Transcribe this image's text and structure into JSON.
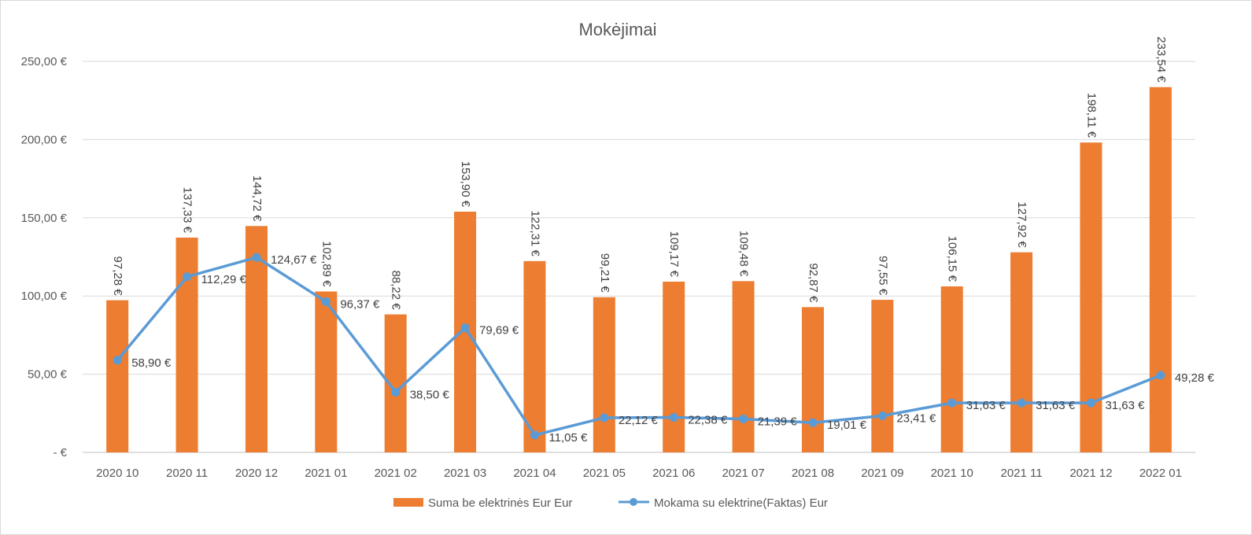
{
  "chart_data": {
    "type": "bar",
    "title": "Mokėjimai",
    "categories": [
      "2020 10",
      "2020 11",
      "2020 12",
      "2021 01",
      "2021 02",
      "2021 03",
      "2021 04",
      "2021 05",
      "2021 06",
      "2021 07",
      "2021 08",
      "2021 09",
      "2021 10",
      "2021 11",
      "2021 12",
      "2022 01"
    ],
    "ylim": [
      0,
      250
    ],
    "yticks": [
      {
        "value": 0,
        "label": "-   €"
      },
      {
        "value": 50,
        "label": "50,00 €"
      },
      {
        "value": 100,
        "label": "100,00 €"
      },
      {
        "value": 150,
        "label": "150,00 €"
      },
      {
        "value": 200,
        "label": "200,00 €"
      },
      {
        "value": 250,
        "label": "250,00 €"
      }
    ],
    "grid": true,
    "legend_position": "bottom",
    "series": [
      {
        "name": "Suma be elektrinės Eur Eur",
        "type": "bar",
        "color": "#ED7D31",
        "values": [
          97.28,
          137.33,
          144.72,
          102.89,
          88.22,
          153.9,
          122.31,
          99.21,
          109.17,
          109.48,
          92.87,
          97.55,
          106.15,
          127.92,
          198.11,
          233.54
        ],
        "labels": [
          "97,28 €",
          "137,33 €",
          "144,72 €",
          "102,89 €",
          "88,22 €",
          "153,90 €",
          "122,31 €",
          "99,21 €",
          "109,17 €",
          "109,48 €",
          "92,87 €",
          "97,55 €",
          "106,15 €",
          "127,92 €",
          "198,11 €",
          "233,54 €"
        ]
      },
      {
        "name": "Mokama su elektrine(Faktas) Eur",
        "type": "line",
        "color": "#5B9BD5",
        "values": [
          58.9,
          112.29,
          124.67,
          96.37,
          38.5,
          79.69,
          11.05,
          22.12,
          22.38,
          21.39,
          19.01,
          23.41,
          31.63,
          31.63,
          31.63,
          49.28
        ],
        "labels": [
          "58,90 €",
          "112,29 €",
          "124,67 €",
          "96,37 €",
          "38,50 €",
          "79,69 €",
          "11,05 €",
          "22,12 €",
          "22,38 €",
          "21,39 €",
          "19,01 €",
          "23,41 €",
          "31,63 €",
          "31,63 €",
          "31,63 €",
          "49,28 €"
        ]
      }
    ]
  }
}
